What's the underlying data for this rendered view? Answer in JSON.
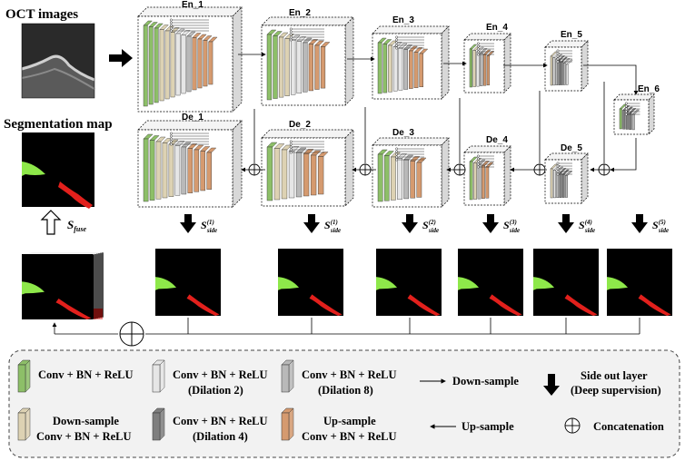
{
  "titles": {
    "oct_images": "OCT images",
    "segmentation_map": "Segmentation map"
  },
  "encoders": [
    {
      "label": "En_1"
    },
    {
      "label": "En_2"
    },
    {
      "label": "En_3"
    },
    {
      "label": "En_4"
    },
    {
      "label": "En_5"
    },
    {
      "label": "En_6"
    }
  ],
  "decoders": [
    {
      "label": "De_1"
    },
    {
      "label": "De_2"
    },
    {
      "label": "De_3"
    },
    {
      "label": "De_4"
    },
    {
      "label": "De_5"
    }
  ],
  "side_outputs": {
    "fuse": {
      "symbol": "S",
      "sub": "fuse"
    },
    "items": [
      {
        "symbol": "S",
        "sup": "(1)",
        "sub": "side"
      },
      {
        "symbol": "S",
        "sup": "(1)",
        "sub": "side"
      },
      {
        "symbol": "S",
        "sup": "(2)",
        "sub": "side"
      },
      {
        "symbol": "S",
        "sup": "(3)",
        "sub": "side"
      },
      {
        "symbol": "S",
        "sup": "(4)",
        "sub": "side"
      },
      {
        "symbol": "S",
        "sup": "(5)",
        "sub": "side"
      }
    ]
  },
  "legend": {
    "conv": {
      "line1": "Conv + BN + ReLU"
    },
    "conv_d2": {
      "line1": "Conv + BN + ReLU",
      "line2": "(Dilation 2)"
    },
    "conv_d8": {
      "line1": "Conv + BN + ReLU",
      "line2": "(Dilation 8)"
    },
    "downsample_block": {
      "line1": "Down-sample",
      "line2": "Conv + BN + ReLU"
    },
    "conv_d4": {
      "line1": "Conv + BN + ReLU",
      "line2": "(Dilation 4)"
    },
    "upsample_block": {
      "line1": "Up-sample",
      "line2": "Conv + BN + ReLU"
    },
    "down_arrow": "Down-sample",
    "up_arrow": "Up-sample",
    "side_out": {
      "line1": "Side out layer",
      "line2": "(Deep supervision)"
    },
    "concat": "Concatenation"
  },
  "colors": {
    "green": "#8dbf68",
    "beige": "#ddd2b3",
    "light_gray": "#e6e6e6",
    "mid_gray": "#b9b9b9",
    "dark_gray": "#7f7f7f",
    "orange": "#d59a6f",
    "seg_green": "#8ee84a",
    "seg_red": "#e2201c"
  }
}
